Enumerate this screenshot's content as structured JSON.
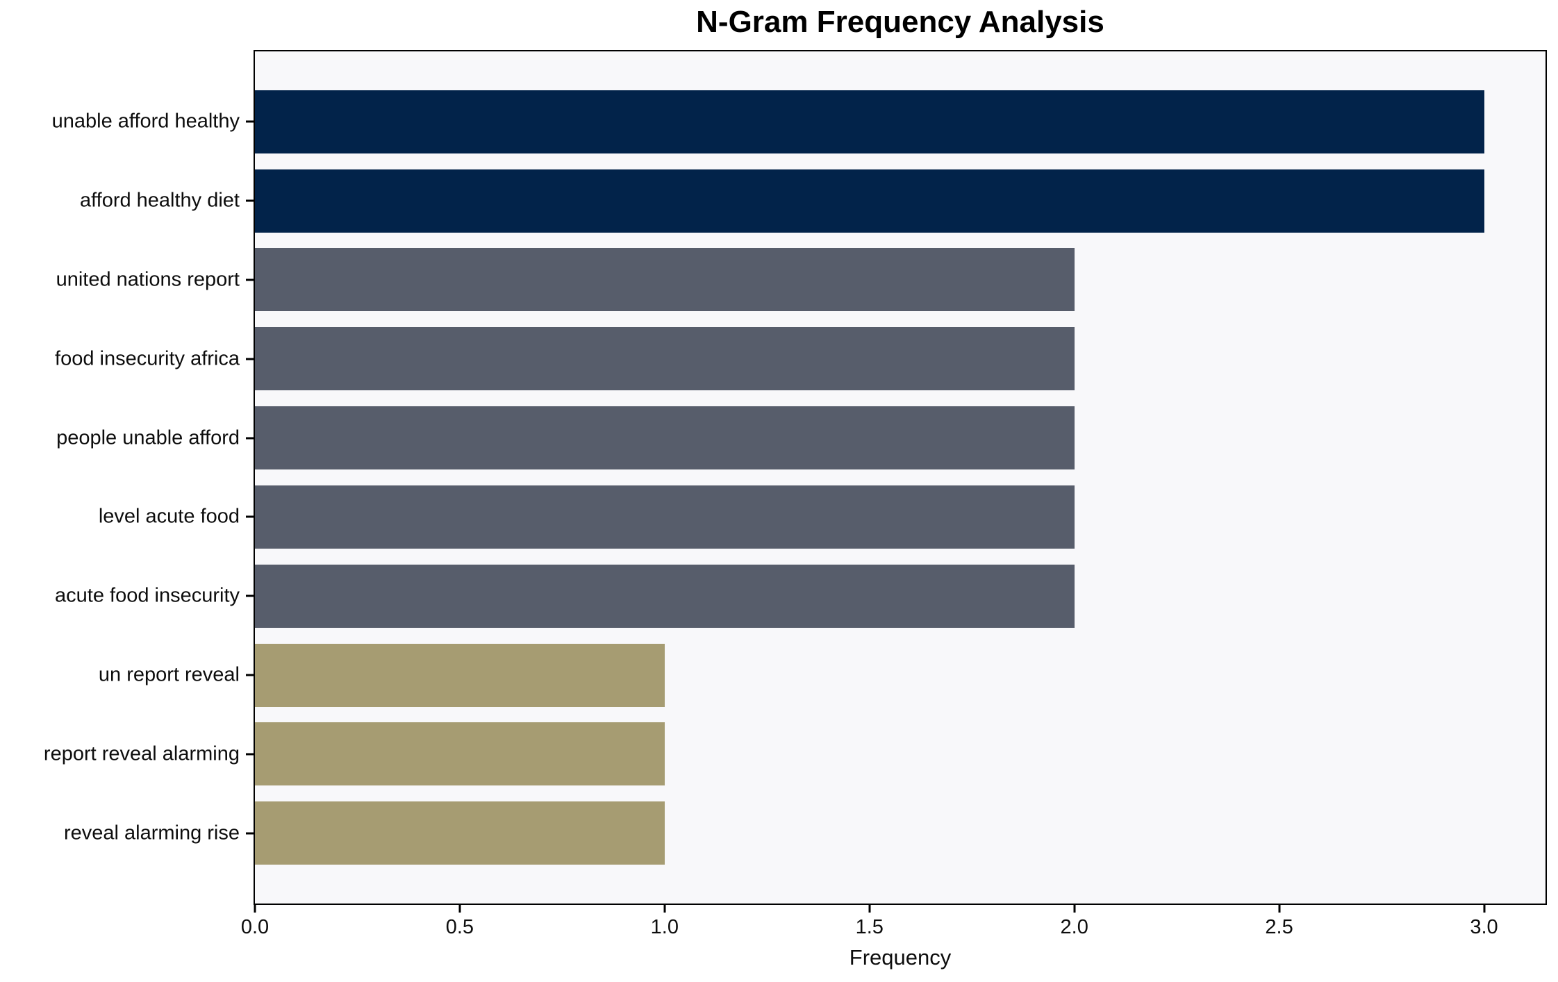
{
  "chart_data": {
    "type": "bar",
    "orientation": "horizontal",
    "title": "N-Gram Frequency Analysis",
    "xlabel": "Frequency",
    "ylabel": "",
    "categories": [
      "unable afford healthy",
      "afford healthy diet",
      "united nations report",
      "food insecurity africa",
      "people unable afford",
      "level acute food",
      "acute food insecurity",
      "un report reveal",
      "report reveal alarming",
      "reveal alarming rise"
    ],
    "values": [
      3,
      3,
      2,
      2,
      2,
      2,
      2,
      1,
      1,
      1
    ],
    "colors": [
      "#02234a",
      "#02234a",
      "#575d6b",
      "#575d6b",
      "#575d6b",
      "#575d6b",
      "#575d6b",
      "#a69c72",
      "#a69c72",
      "#a69c72"
    ],
    "xlim": [
      0,
      3.15
    ],
    "xticks": [
      0.0,
      0.5,
      1.0,
      1.5,
      2.0,
      2.5,
      3.0
    ],
    "xtick_labels": [
      "0.0",
      "0.5",
      "1.0",
      "1.5",
      "2.0",
      "2.5",
      "3.0"
    ],
    "bar_thickness": 0.8,
    "axis_margin": 0.05,
    "grid": false,
    "legend": false,
    "plot_background": "#f8f8fa",
    "figure_background": "#ffffff",
    "spine_color": "#000000",
    "text_color": "#0d0d0d"
  }
}
